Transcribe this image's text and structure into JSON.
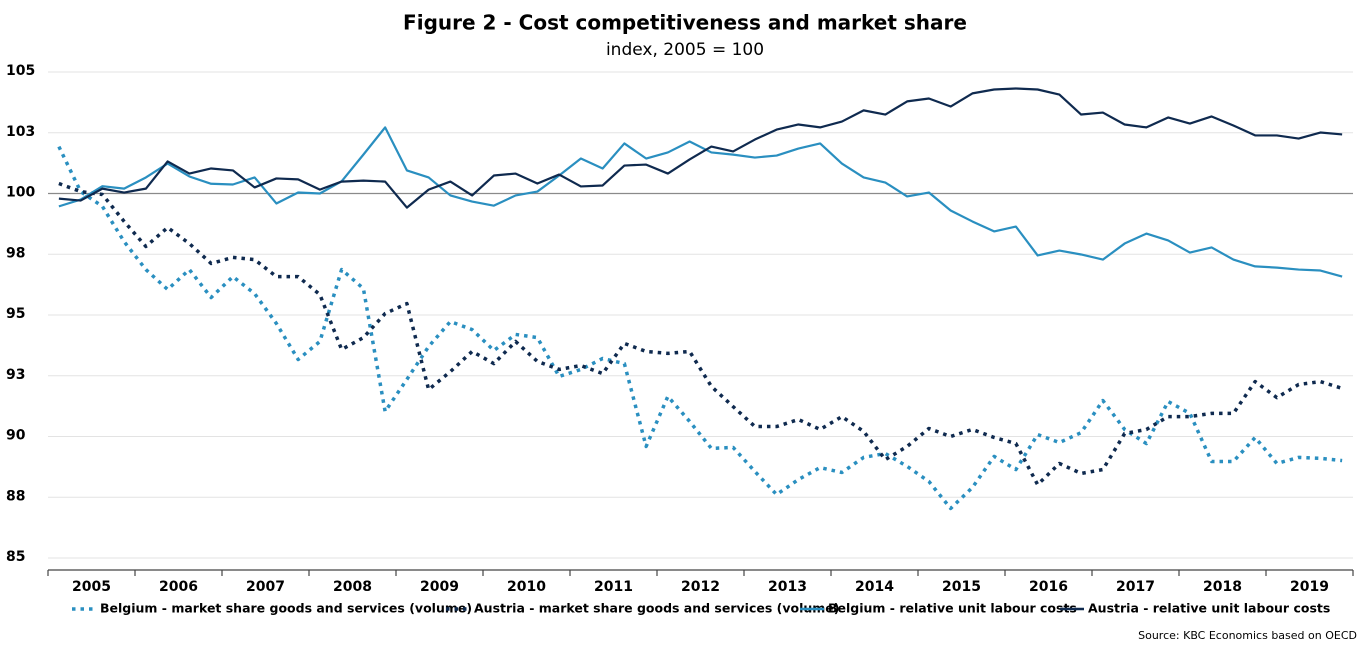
{
  "chart_data": {
    "type": "line",
    "title": "Figure 2 - Cost competitiveness and market share",
    "subtitle": "index, 2005 = 100",
    "source": "Source: KBC Economics based on OECD",
    "categories": [
      "2005",
      null,
      null,
      null,
      "2006",
      null,
      null,
      null,
      "2007",
      null,
      null,
      null,
      "2008",
      null,
      null,
      null,
      "2009",
      null,
      null,
      null,
      "2010",
      null,
      null,
      null,
      "2011",
      null,
      null,
      null,
      "2012",
      null,
      null,
      null,
      "2013",
      null,
      null,
      null,
      "2014",
      null,
      null,
      null,
      "2015",
      null,
      null,
      null,
      "2016",
      null,
      null,
      null,
      "2017",
      null,
      null,
      null,
      "2018",
      null,
      null,
      null,
      "2019",
      null,
      null,
      null
    ],
    "ylim": [
      85,
      105
    ],
    "yticks": [
      85,
      {
        "value": 87.5,
        "label": "88"
      },
      90,
      {
        "value": 92.5,
        "label": "93"
      },
      95,
      {
        "value": 97.5,
        "label": "98"
      },
      100,
      {
        "value": 102.5,
        "label": "103"
      },
      105
    ],
    "grid": true,
    "reference_line": 100,
    "legend": "bottom",
    "series": [
      {
        "name": "Belgium - market share goods and services (volume)",
        "color": "#2a8fc0",
        "line_style": "dotted",
        "values": [
          101.93,
          100.08,
          99.47,
          98.02,
          96.87,
          96.05,
          96.87,
          95.72,
          96.58,
          95.88,
          94.65,
          93.17,
          93.91,
          96.87,
          96.09,
          91.03,
          92.35,
          93.7,
          94.73,
          94.4,
          93.54,
          94.2,
          94.07,
          92.47,
          92.76,
          93.21,
          93.0,
          89.59,
          91.65,
          90.62,
          89.51,
          89.55,
          88.56,
          87.61,
          88.23,
          88.72,
          88.52,
          89.14,
          89.3,
          88.77,
          88.15,
          87.04,
          87.9,
          89.18,
          88.64,
          90.08,
          89.75,
          90.16,
          91.48,
          90.29,
          89.71,
          91.44,
          90.95,
          88.97,
          88.97,
          89.96,
          88.89,
          89.14,
          89.1,
          89.01
        ]
      },
      {
        "name": "Austria - market share goods and services (volume)",
        "color": "#0f2a4f",
        "line_style": "dotted",
        "values": [
          100.41,
          100.08,
          99.96,
          98.85,
          97.82,
          98.6,
          97.94,
          97.12,
          97.37,
          97.28,
          96.58,
          96.58,
          95.84,
          93.58,
          94.07,
          95.06,
          95.47,
          91.93,
          92.67,
          93.5,
          93.0,
          93.91,
          93.09,
          92.76,
          92.92,
          92.59,
          93.83,
          93.5,
          93.42,
          93.5,
          92.06,
          91.23,
          90.41,
          90.41,
          90.7,
          90.29,
          90.82,
          90.21,
          89.05,
          89.59,
          90.33,
          90.0,
          90.29,
          89.96,
          89.71,
          88.02,
          88.89,
          88.48,
          88.64,
          90.12,
          90.29,
          90.82,
          90.82,
          90.95,
          90.95,
          92.26,
          91.6,
          92.14,
          92.26,
          91.98
        ]
      },
      {
        "name": "Belgium - relative unit labour costs",
        "color": "#2a8fc0",
        "line_style": "solid",
        "values": [
          99.47,
          99.75,
          100.3,
          100.2,
          100.66,
          101.23,
          100.7,
          100.4,
          100.37,
          100.66,
          99.59,
          100.04,
          100.0,
          100.5,
          101.6,
          102.72,
          100.95,
          100.66,
          99.92,
          99.67,
          99.5,
          99.92,
          100.08,
          100.74,
          101.44,
          101.03,
          102.06,
          101.44,
          101.69,
          102.14,
          101.69,
          101.6,
          101.48,
          101.56,
          101.85,
          102.06,
          101.23,
          100.66,
          100.45,
          99.88,
          100.04,
          99.3,
          98.85,
          98.44,
          98.64,
          97.45,
          97.65,
          97.49,
          97.28,
          97.94,
          98.35,
          98.07,
          97.57,
          97.78,
          97.28,
          97.0,
          96.95,
          96.87,
          96.83,
          96.58
        ]
      },
      {
        "name": "Austria - relative unit labour costs",
        "color": "#0f2a4f",
        "line_style": "solid",
        "values": [
          99.79,
          99.71,
          100.2,
          100.04,
          100.2,
          101.32,
          100.82,
          101.03,
          100.95,
          100.25,
          100.62,
          100.58,
          100.16,
          100.49,
          100.53,
          100.49,
          99.42,
          100.16,
          100.49,
          99.92,
          100.74,
          100.82,
          100.41,
          100.78,
          100.29,
          100.33,
          101.15,
          101.19,
          100.82,
          101.4,
          101.93,
          101.73,
          102.22,
          102.63,
          102.84,
          102.72,
          102.96,
          103.42,
          103.25,
          103.79,
          103.91,
          103.58,
          104.12,
          104.28,
          104.32,
          104.28,
          104.07,
          103.25,
          103.33,
          102.84,
          102.72,
          103.13,
          102.88,
          103.17,
          102.8,
          102.39,
          102.39,
          102.26,
          102.51,
          102.43
        ]
      }
    ]
  }
}
